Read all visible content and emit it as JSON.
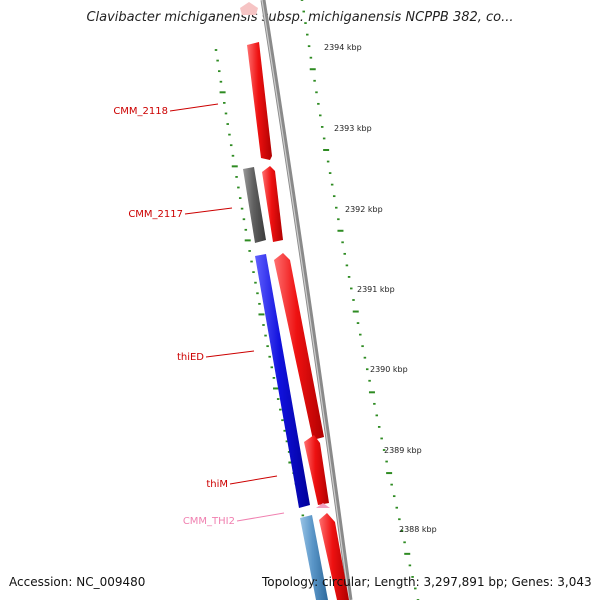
{
  "title": "Clavibacter michiganensis subsp. michiganensis NCPPB 382, co...",
  "footer": {
    "accession": "Accession: NC_009480",
    "stats": "Topology: circular; Length: 3,297,891 bp; Genes: 3,043"
  },
  "colors": {
    "backbone": "#8a8a8a",
    "tick": "#2e8b22",
    "forward_gene": "#ee1111",
    "reverse_gene_blue": "#1111dd",
    "reverse_gene_gray": "#606060",
    "reverse_gene_lightblue": "#5a96c8",
    "trna": "#f0a0c0",
    "label_red": "#cc0000",
    "label_pink": "#f080b0"
  },
  "ticks": {
    "unit": "kbp",
    "labels": [
      "2394 kbp",
      "2393 kbp",
      "2392 kbp",
      "2391 kbp",
      "2390 kbp",
      "2389 kbp",
      "2388 kbp"
    ]
  },
  "gene_labels": [
    "CMM_2118",
    "CMM_2117",
    "thiED",
    "thiM",
    "CMM_THI2"
  ]
}
